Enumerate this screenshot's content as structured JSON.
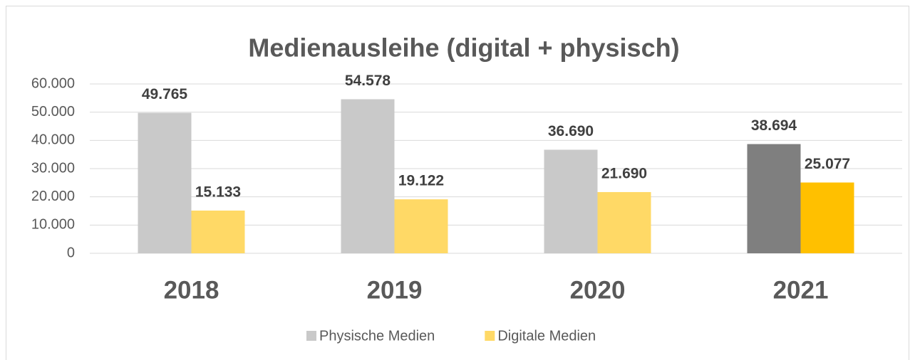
{
  "chart_data": {
    "type": "bar",
    "title": "Medienausleihe (digital + physisch)",
    "categories": [
      "2018",
      "2019",
      "2020",
      "2021"
    ],
    "series": [
      {
        "name": "Physische Medien",
        "color": "#c9c9c9",
        "colors": [
          "#c9c9c9",
          "#c9c9c9",
          "#c9c9c9",
          "#7f7f7f"
        ],
        "values": [
          49765,
          54578,
          36690,
          38694
        ],
        "value_labels": [
          "49.765",
          "54.578",
          "36.690",
          "38.694"
        ]
      },
      {
        "name": "Digitale Medien",
        "color": "#ffd966",
        "colors": [
          "#ffd966",
          "#ffd966",
          "#ffd966",
          "#ffc000"
        ],
        "values": [
          15133,
          19122,
          21690,
          25077
        ],
        "value_labels": [
          "15.133",
          "19.122",
          "21.690",
          "25.077"
        ]
      }
    ],
    "ylim": [
      0,
      60000
    ],
    "yticks": [
      0,
      {
        "value": 10000,
        "label": "10.000"
      },
      {
        "value": 20000,
        "label": "20.000"
      },
      {
        "value": 30000,
        "label": "30.000"
      },
      {
        "value": 40000,
        "label": "40.000"
      },
      {
        "value": 50000,
        "label": "50.000"
      },
      {
        "value": 60000,
        "label": "60.000"
      }
    ],
    "grid": true,
    "legend": "bottom"
  }
}
